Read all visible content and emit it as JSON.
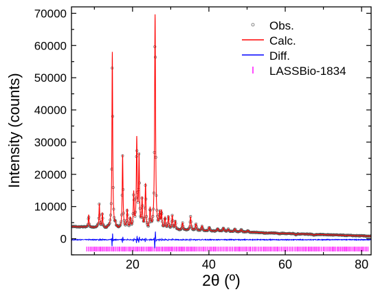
{
  "chart_data": {
    "type": "line",
    "title": "",
    "xlabel": "2θ (º)",
    "ylabel": "Intensity (counts)",
    "xlim": [
      4,
      82.5
    ],
    "ylim": [
      -5000,
      72000
    ],
    "xticks": [
      20,
      40,
      60,
      80
    ],
    "yticks": [
      0,
      10000,
      20000,
      30000,
      40000,
      50000,
      60000,
      70000
    ],
    "legend_position": "top-right",
    "grid": false,
    "legend": [
      {
        "label": "Obs.",
        "color": "#666666",
        "marker": "open-circle"
      },
      {
        "label": "Calc.",
        "color": "#ff0000",
        "marker": "line"
      },
      {
        "label": "Diff.",
        "color": "#0000ff",
        "marker": "line"
      },
      {
        "label": "LASSBio-1834",
        "color": "#ff00ff",
        "marker": "tick"
      }
    ],
    "background": {
      "x0": 4,
      "x1": 82.5,
      "y0": 3800,
      "y1": 800
    },
    "peaks": [
      {
        "x": 8.5,
        "y": 7500
      },
      {
        "x": 10.9,
        "y": 4000
      },
      {
        "x": 11.3,
        "y": 10800
      },
      {
        "x": 12.1,
        "y": 8000
      },
      {
        "x": 14.7,
        "y": 58000
      },
      {
        "x": 15.5,
        "y": 4500
      },
      {
        "x": 17.4,
        "y": 26000
      },
      {
        "x": 18.6,
        "y": 9000
      },
      {
        "x": 19.4,
        "y": 6500
      },
      {
        "x": 20.3,
        "y": 14000
      },
      {
        "x": 21.1,
        "y": 30500
      },
      {
        "x": 21.7,
        "y": 25000
      },
      {
        "x": 22.5,
        "y": 12000
      },
      {
        "x": 23.4,
        "y": 17000
      },
      {
        "x": 24.6,
        "y": 9000
      },
      {
        "x": 25.9,
        "y": 69500
      },
      {
        "x": 27.1,
        "y": 7500
      },
      {
        "x": 27.6,
        "y": 8200
      },
      {
        "x": 28.5,
        "y": 6500
      },
      {
        "x": 29.4,
        "y": 7000
      },
      {
        "x": 30.4,
        "y": 7200
      },
      {
        "x": 31.2,
        "y": 5500
      },
      {
        "x": 33.1,
        "y": 5000
      },
      {
        "x": 35.2,
        "y": 6800
      },
      {
        "x": 36.6,
        "y": 4600
      },
      {
        "x": 38.2,
        "y": 4000
      },
      {
        "x": 40.1,
        "y": 3600
      },
      {
        "x": 42.3,
        "y": 3200
      },
      {
        "x": 43.8,
        "y": 3400
      },
      {
        "x": 45.1,
        "y": 3000
      },
      {
        "x": 46.8,
        "y": 3100
      },
      {
        "x": 48.5,
        "y": 2800
      },
      {
        "x": 50.2,
        "y": 2600
      },
      {
        "x": 52.3,
        "y": 2000
      },
      {
        "x": 54.6,
        "y": 1700
      },
      {
        "x": 58.5,
        "y": 1500
      },
      {
        "x": 62.8,
        "y": 1200
      },
      {
        "x": 67.5,
        "y": 1100
      }
    ],
    "diff_baseline": -300,
    "reflection_tick_y": -3200,
    "reflection_range": [
      8,
      82
    ]
  }
}
